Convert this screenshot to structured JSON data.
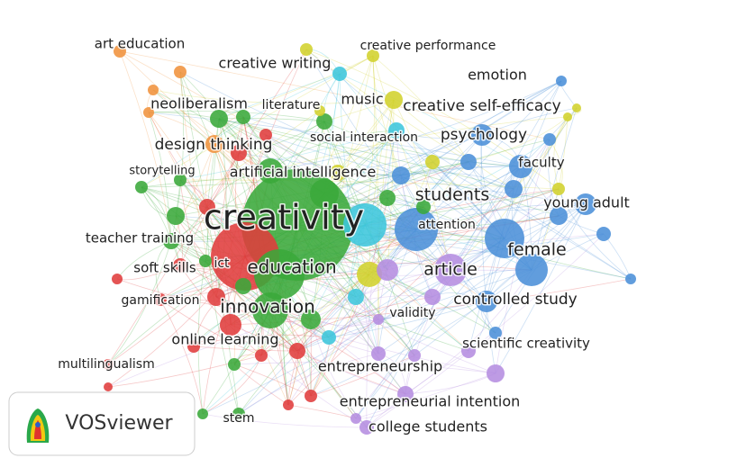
{
  "nodes": [
    {
      "label": "art education"
    },
    {
      "label": "creative performance"
    },
    {
      "label": "creative writing"
    },
    {
      "label": "emotion"
    },
    {
      "label": "neoliberalism"
    },
    {
      "label": "literature"
    },
    {
      "label": "music"
    },
    {
      "label": "creative self-efficacy"
    },
    {
      "label": "design thinking"
    },
    {
      "label": "social interaction"
    },
    {
      "label": "psychology"
    },
    {
      "label": "faculty"
    },
    {
      "label": "storytelling"
    },
    {
      "label": "artificial intelligence"
    },
    {
      "label": "students"
    },
    {
      "label": "young adult"
    },
    {
      "label": "creativity"
    },
    {
      "label": "attention"
    },
    {
      "label": "teacher training"
    },
    {
      "label": "female"
    },
    {
      "label": "soft skills"
    },
    {
      "label": "ict"
    },
    {
      "label": "education"
    },
    {
      "label": "article"
    },
    {
      "label": "gamification"
    },
    {
      "label": "controlled study"
    },
    {
      "label": "innovation"
    },
    {
      "label": "validity"
    },
    {
      "label": "online learning"
    },
    {
      "label": "scientific creativity"
    },
    {
      "label": "multilingualism"
    },
    {
      "label": "entrepreneurship"
    },
    {
      "label": "entrepreneurial intention"
    },
    {
      "label": "stem"
    },
    {
      "label": "college students"
    }
  ],
  "logo": {
    "text": "VOSviewer"
  }
}
